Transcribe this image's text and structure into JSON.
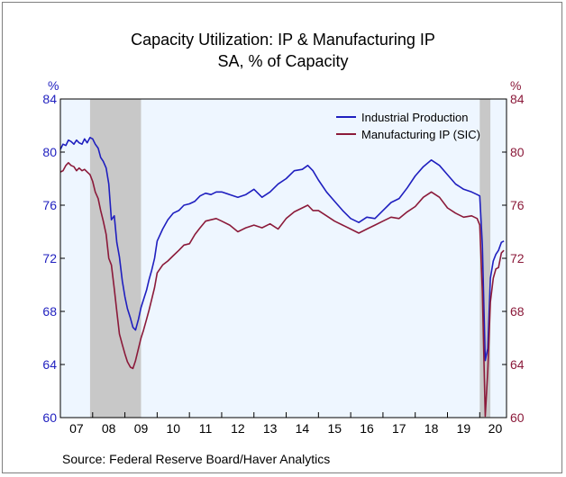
{
  "chart_data": {
    "type": "line",
    "title": "Capacity Utilization: IP & Manufacturing IP",
    "subtitle": "SA, % of Capacity",
    "ylabel_left": "%",
    "ylabel_right": "%",
    "ylim": [
      60,
      84
    ],
    "yticks": [
      60,
      64,
      68,
      72,
      76,
      80,
      84
    ],
    "xlim": [
      2007.0,
      2020.83
    ],
    "xtick_labels": [
      "07",
      "08",
      "09",
      "10",
      "11",
      "12",
      "13",
      "14",
      "15",
      "16",
      "17",
      "18",
      "19",
      "20"
    ],
    "legend_position": "top-right",
    "recessions": [
      {
        "start": 2007.92,
        "end": 2009.5
      },
      {
        "start": 2020.0,
        "end": 2020.33
      }
    ],
    "source": "Source:  Federal Reserve Board/Haver Analytics",
    "colors": {
      "industrial": "#1f1fbf",
      "manufacturing": "#8b1a3a",
      "recession": "#c8c8c8",
      "plot_bg": "#eef6ff"
    },
    "series": [
      {
        "name": "Industrial Production",
        "x": [
          2007.0,
          2007.08,
          2007.17,
          2007.25,
          2007.33,
          2007.42,
          2007.5,
          2007.58,
          2007.67,
          2007.75,
          2007.83,
          2007.92,
          2008.0,
          2008.08,
          2008.17,
          2008.25,
          2008.33,
          2008.42,
          2008.5,
          2008.58,
          2008.67,
          2008.75,
          2008.83,
          2008.92,
          2009.0,
          2009.08,
          2009.17,
          2009.25,
          2009.33,
          2009.42,
          2009.5,
          2009.58,
          2009.67,
          2009.75,
          2009.83,
          2009.92,
          2010.0,
          2010.17,
          2010.33,
          2010.5,
          2010.67,
          2010.83,
          2011.0,
          2011.17,
          2011.33,
          2011.5,
          2011.67,
          2011.83,
          2012.0,
          2012.25,
          2012.5,
          2012.75,
          2013.0,
          2013.25,
          2013.5,
          2013.75,
          2014.0,
          2014.25,
          2014.5,
          2014.67,
          2014.83,
          2015.0,
          2015.25,
          2015.5,
          2015.75,
          2016.0,
          2016.25,
          2016.5,
          2016.75,
          2017.0,
          2017.25,
          2017.5,
          2017.75,
          2018.0,
          2018.25,
          2018.5,
          2018.75,
          2019.0,
          2019.25,
          2019.5,
          2019.75,
          2019.92,
          2020.0,
          2020.08,
          2020.17,
          2020.25,
          2020.33,
          2020.42,
          2020.5,
          2020.58,
          2020.67,
          2020.75
        ],
        "values": [
          80.2,
          80.6,
          80.5,
          80.9,
          80.8,
          80.6,
          80.9,
          80.7,
          80.6,
          81.0,
          80.7,
          81.1,
          81.0,
          80.6,
          80.3,
          79.6,
          79.3,
          78.8,
          77.6,
          74.9,
          75.2,
          73.2,
          72.1,
          70.3,
          69.1,
          68.2,
          67.5,
          66.8,
          66.6,
          67.4,
          68.3,
          68.9,
          69.6,
          70.4,
          71.1,
          72.0,
          73.3,
          74.2,
          74.9,
          75.4,
          75.6,
          76.0,
          76.1,
          76.3,
          76.7,
          76.9,
          76.8,
          77.0,
          77.0,
          76.8,
          76.6,
          76.8,
          77.2,
          76.6,
          77.0,
          77.6,
          78.0,
          78.6,
          78.7,
          79.0,
          78.6,
          77.9,
          77.0,
          76.3,
          75.6,
          75.0,
          74.7,
          75.1,
          75.0,
          75.6,
          76.2,
          76.5,
          77.3,
          78.2,
          78.9,
          79.4,
          79.0,
          78.3,
          77.6,
          77.2,
          77.0,
          76.8,
          76.7,
          73.0,
          64.3,
          65.2,
          70.5,
          71.8,
          72.3,
          72.6,
          73.2,
          73.3
        ]
      },
      {
        "name": "Manufacturing IP (SIC)",
        "x": [
          2007.0,
          2007.08,
          2007.17,
          2007.25,
          2007.33,
          2007.42,
          2007.5,
          2007.58,
          2007.67,
          2007.75,
          2007.83,
          2007.92,
          2008.0,
          2008.08,
          2008.17,
          2008.25,
          2008.33,
          2008.42,
          2008.5,
          2008.58,
          2008.67,
          2008.75,
          2008.83,
          2008.92,
          2009.0,
          2009.08,
          2009.17,
          2009.25,
          2009.33,
          2009.42,
          2009.5,
          2009.58,
          2009.67,
          2009.75,
          2009.83,
          2009.92,
          2010.0,
          2010.17,
          2010.33,
          2010.5,
          2010.67,
          2010.83,
          2011.0,
          2011.17,
          2011.33,
          2011.5,
          2011.67,
          2011.83,
          2012.0,
          2012.25,
          2012.5,
          2012.75,
          2013.0,
          2013.25,
          2013.5,
          2013.75,
          2014.0,
          2014.25,
          2014.5,
          2014.67,
          2014.83,
          2015.0,
          2015.25,
          2015.5,
          2015.75,
          2016.0,
          2016.25,
          2016.5,
          2016.75,
          2017.0,
          2017.25,
          2017.5,
          2017.75,
          2018.0,
          2018.25,
          2018.5,
          2018.75,
          2019.0,
          2019.25,
          2019.5,
          2019.75,
          2019.92,
          2020.0,
          2020.08,
          2020.17,
          2020.25,
          2020.33,
          2020.42,
          2020.5,
          2020.58,
          2020.67,
          2020.75
        ],
        "values": [
          78.5,
          78.6,
          79.0,
          79.2,
          79.0,
          78.9,
          78.6,
          78.8,
          78.6,
          78.7,
          78.5,
          78.3,
          77.8,
          77.0,
          76.5,
          75.6,
          74.8,
          73.8,
          72.0,
          71.5,
          69.7,
          68.0,
          66.3,
          65.5,
          64.8,
          64.2,
          63.8,
          63.7,
          64.3,
          65.2,
          66.0,
          66.6,
          67.4,
          68.1,
          68.9,
          69.8,
          70.9,
          71.5,
          71.8,
          72.2,
          72.6,
          73.0,
          73.1,
          73.8,
          74.3,
          74.8,
          74.9,
          75.0,
          74.8,
          74.5,
          74.0,
          74.3,
          74.5,
          74.3,
          74.6,
          74.2,
          75.0,
          75.5,
          75.8,
          76.0,
          75.6,
          75.6,
          75.2,
          74.8,
          74.5,
          74.2,
          73.9,
          74.2,
          74.5,
          74.8,
          75.1,
          75.0,
          75.5,
          75.9,
          76.6,
          77.0,
          76.6,
          75.8,
          75.4,
          75.1,
          75.2,
          75.0,
          74.5,
          69.5,
          60.1,
          63.5,
          68.7,
          70.5,
          71.2,
          71.3,
          72.4,
          72.6
        ]
      }
    ]
  }
}
